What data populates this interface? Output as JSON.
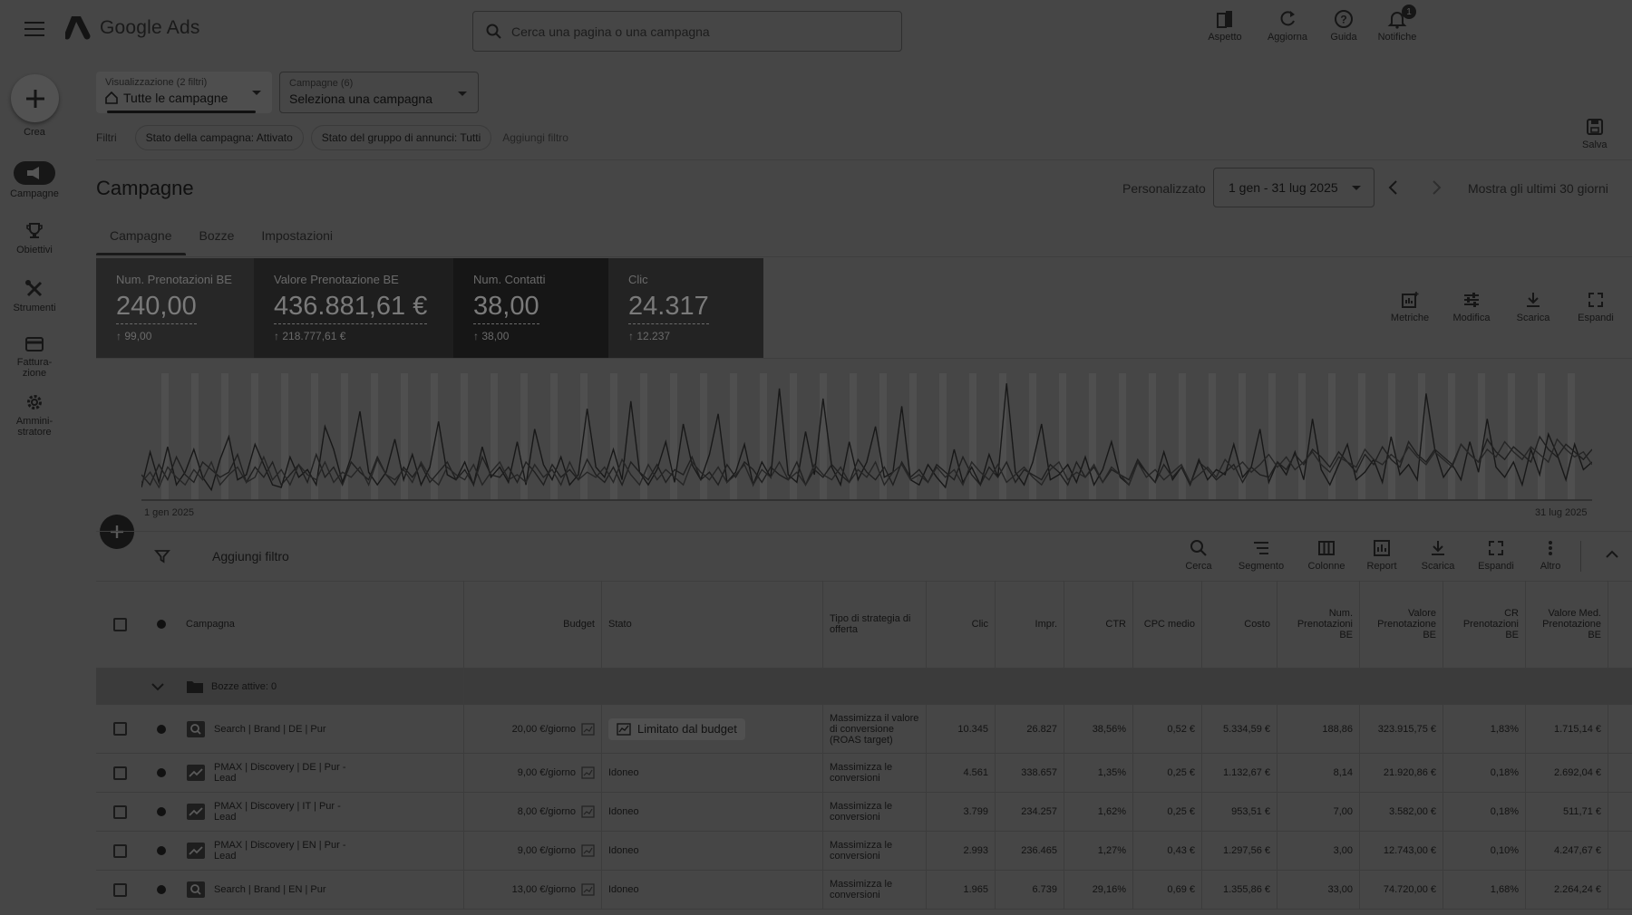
{
  "app": {
    "name": "Google Ads"
  },
  "search": {
    "placeholder": "Cerca una pagina o una campagna"
  },
  "top_actions": [
    {
      "label": "Aspetto",
      "icon": "appearance-icon"
    },
    {
      "label": "Aggiorna",
      "icon": "refresh-icon"
    },
    {
      "label": "Guida",
      "icon": "help-icon"
    },
    {
      "label": "Notifiche",
      "icon": "bell-icon",
      "badge": "1"
    }
  ],
  "rail": {
    "create_label": "Crea",
    "items": [
      {
        "label": "Campagne",
        "icon": "campaigns-icon",
        "active": true
      },
      {
        "label": "Obiettivi",
        "icon": "trophy-icon"
      },
      {
        "label": "Strumenti",
        "icon": "tools-icon"
      },
      {
        "label": "Fattura-\nzione",
        "icon": "billing-icon"
      },
      {
        "label": "Ammini-\nstratore",
        "icon": "gear-icon"
      }
    ]
  },
  "view_selector": {
    "caption": "Visualizzazione (2 filtri)",
    "value": "Tutte le campagne"
  },
  "campaign_selector": {
    "caption": "Campagne (6)",
    "value": "Seleziona una campagna"
  },
  "filters": {
    "label": "Filtri",
    "chips": [
      "Stato della campagna: Attivato",
      "Stato del gruppo di annunci: Tutti"
    ],
    "add_label": "Aggiungi filtro"
  },
  "save_label": "Salva",
  "page_title": "Campagne",
  "date": {
    "label": "Personalizzato",
    "range": "1 gen - 31 lug 2025",
    "last_30": "Mostra gli ultimi 30 giorni"
  },
  "tabs": [
    "Campagne",
    "Bozze",
    "Impostazioni"
  ],
  "scorecards": [
    {
      "name": "Num. Prenotazioni BE",
      "value": "240,00",
      "delta": "99,00"
    },
    {
      "name": "Valore Prenotazione BE",
      "value": "436.881,61 €",
      "delta": "218.777,61 €"
    },
    {
      "name": "Num. Contatti",
      "value": "38,00",
      "delta": "38,00"
    },
    {
      "name": "Clic",
      "value": "24.317",
      "delta": "12.237"
    }
  ],
  "chart_tools": [
    "Metriche",
    "Modifica",
    "Scarica",
    "Espandi"
  ],
  "chart_data": {
    "type": "line",
    "x_start_label": "1 gen 2025",
    "x_end_label": "31 lug 2025",
    "grid": "vertical bands",
    "series": [
      {
        "values": [
          10,
          38,
          14,
          42,
          12,
          22,
          40,
          18,
          8,
          32,
          50,
          16,
          20,
          44,
          28,
          12,
          10,
          34,
          18,
          24,
          12,
          58,
          40,
          14,
          34,
          70,
          22,
          12,
          22,
          48,
          16,
          36,
          12,
          26,
          62,
          20,
          16,
          30,
          12,
          42,
          18,
          26,
          14,
          46,
          12,
          56,
          28,
          16,
          34,
          12,
          20,
          72,
          26,
          18,
          40,
          16,
          78,
          22,
          12,
          24,
          46,
          14,
          60,
          28,
          16,
          36,
          68,
          14,
          22,
          44,
          12,
          30,
          18,
          88,
          20,
          14,
          54,
          20,
          80,
          26,
          12,
          46,
          16,
          30,
          58,
          18,
          22,
          74,
          16,
          12,
          28,
          18,
          10,
          40,
          14,
          26,
          12,
          36,
          18,
          92,
          22,
          12,
          30,
          60,
          16,
          20,
          28,
          14,
          34,
          12,
          24,
          46,
          18,
          12,
          30,
          22,
          14,
          38,
          16,
          26,
          12,
          32,
          16,
          24,
          20,
          44,
          18,
          26,
          56,
          14,
          30,
          20,
          38,
          16,
          64,
          24,
          12,
          28,
          44,
          16,
          22,
          32,
          14,
          50,
          20,
          28,
          16,
          84,
          40,
          18,
          28,
          16,
          46,
          22,
          64,
          26,
          18,
          30,
          12,
          40,
          20,
          52,
          36,
          16,
          44,
          24,
          30
        ]
      },
      {
        "values": [
          20,
          12,
          28,
          16,
          34,
          20,
          14,
          30,
          24,
          18,
          22,
          36,
          14,
          26,
          18,
          30,
          12,
          20,
          28,
          14,
          36,
          18,
          26,
          12,
          30,
          22,
          16,
          34,
          20,
          12,
          26,
          18,
          28,
          14,
          22,
          30,
          16,
          24,
          12,
          34,
          20,
          18,
          26,
          14,
          30,
          22,
          12,
          28,
          18,
          24,
          16,
          32,
          20,
          14,
          26,
          12,
          30,
          22,
          16,
          28,
          14,
          24,
          20,
          34,
          16,
          22,
          12,
          28,
          18,
          30,
          24,
          14,
          26,
          20,
          16,
          30,
          12,
          24,
          18,
          28,
          20,
          14,
          32,
          22,
          16,
          26,
          12,
          30,
          18,
          24,
          14,
          28,
          22,
          16,
          34,
          20,
          12,
          26,
          18,
          30,
          14,
          24,
          20,
          16,
          28,
          22,
          12,
          30,
          18,
          26,
          14,
          24,
          20,
          16,
          32,
          22,
          14,
          28,
          18,
          26,
          12,
          30,
          24,
          16,
          22,
          28,
          14,
          26,
          20,
          18,
          30,
          24,
          36,
          28,
          40,
          34,
          26,
          38,
          30,
          22,
          36,
          28,
          42,
          32,
          26,
          46,
          36,
          30,
          40,
          34,
          28,
          44,
          36,
          30,
          48,
          38,
          32,
          42,
          36,
          30,
          50,
          40,
          34,
          44,
          38,
          32,
          40
        ]
      },
      {
        "values": [
          14,
          22,
          10,
          26,
          18,
          12,
          24,
          16,
          30,
          12,
          20,
          26,
          14,
          18,
          34,
          16,
          24,
          12,
          28,
          20,
          16,
          30,
          14,
          22,
          18,
          26,
          12,
          32,
          20,
          16,
          24,
          14,
          30,
          18,
          12,
          26,
          20,
          16,
          28,
          12,
          22,
          30,
          16,
          20,
          14,
          28,
          18,
          24,
          12,
          30,
          16,
          22,
          18,
          26,
          14,
          32,
          20,
          12,
          28,
          16,
          24,
          18,
          12,
          30,
          22,
          16,
          26,
          14,
          20,
          28,
          12,
          24,
          18,
          30,
          16,
          22,
          12,
          28,
          20,
          16,
          26,
          14,
          24,
          18,
          30,
          12,
          22,
          28,
          16,
          20,
          14,
          26,
          18,
          24,
          12,
          30,
          22,
          16,
          28,
          14,
          20,
          26,
          18,
          12,
          24,
          30,
          16,
          22,
          18,
          28,
          14,
          26,
          20,
          12,
          30,
          18,
          24,
          16,
          22,
          28,
          14,
          20,
          26,
          18,
          32,
          24,
          30,
          22,
          28,
          36,
          26,
          34,
          24,
          30,
          38,
          28,
          22,
          34,
          30,
          26,
          40,
          32,
          28,
          36,
          30,
          42,
          34,
          28,
          38,
          32,
          26,
          44,
          36,
          30,
          40,
          34,
          46,
          38,
          32,
          42,
          36,
          30,
          48,
          40,
          34,
          38,
          28
        ]
      }
    ],
    "ylim": [
      0,
      100
    ]
  },
  "table_toolbar": {
    "add_filter": "Aggiungi filtro",
    "actions": [
      {
        "label": "Cerca",
        "icon": "search-icon"
      },
      {
        "label": "Segmento",
        "icon": "segment-icon"
      },
      {
        "label": "Colonne",
        "icon": "columns-icon"
      },
      {
        "label": "Report",
        "icon": "report-icon"
      },
      {
        "label": "Scarica",
        "icon": "download-icon"
      },
      {
        "label": "Espandi",
        "icon": "expand-icon"
      },
      {
        "label": "Altro",
        "icon": "more-vert-icon"
      }
    ]
  },
  "table": {
    "headers": [
      "Campagna",
      "Budget",
      "Stato",
      "Tipo di strategia di offerta",
      "Clic",
      "Impr.",
      "CTR",
      "CPC medio",
      "Costo",
      "Num. Prenotazioni BE",
      "Valore Prenotazione BE",
      "CR Prenotazioni BE",
      "Valore Med. Prenotazione BE"
    ],
    "group_label": "Bozze attive: 0",
    "rows": [
      {
        "name": "Search | Brand | DE | Pur",
        "type": "search",
        "budget": "20,00 €/giorno",
        "status": "Limitato dal budget",
        "status_chip": true,
        "strategy": "Massimizza il valore di conversione (ROAS target)",
        "clic": "10.345",
        "impr": "26.827",
        "ctr": "38,56%",
        "cpc": "0,52 €",
        "costo": "5.334,59 €",
        "pren": "188,86",
        "valore": "323.915,75 €",
        "cr": "1,83%",
        "valmed": "1.715,14 €"
      },
      {
        "name": "PMAX | Discovery | DE | Pur - Lead",
        "type": "pmax",
        "budget": "9,00 €/giorno",
        "status": "Idoneo",
        "strategy": "Massimizza le conversioni",
        "clic": "4.561",
        "impr": "338.657",
        "ctr": "1,35%",
        "cpc": "0,25 €",
        "costo": "1.132,67 €",
        "pren": "8,14",
        "valore": "21.920,86 €",
        "cr": "0,18%",
        "valmed": "2.692,04 €"
      },
      {
        "name": "PMAX | Discovery | IT | Pur - Lead",
        "type": "pmax",
        "budget": "8,00 €/giorno",
        "status": "Idoneo",
        "strategy": "Massimizza le conversioni",
        "clic": "3.799",
        "impr": "234.257",
        "ctr": "1,62%",
        "cpc": "0,25 €",
        "costo": "953,51 €",
        "pren": "7,00",
        "valore": "3.582,00 €",
        "cr": "0,18%",
        "valmed": "511,71 €"
      },
      {
        "name": "PMAX | Discovery | EN | Pur - Lead",
        "type": "pmax",
        "budget": "9,00 €/giorno",
        "status": "Idoneo",
        "strategy": "Massimizza le conversioni",
        "clic": "2.993",
        "impr": "236.465",
        "ctr": "1,27%",
        "cpc": "0,43 €",
        "costo": "1.297,56 €",
        "pren": "3,00",
        "valore": "12.743,00 €",
        "cr": "0,10%",
        "valmed": "4.247,67 €"
      },
      {
        "name": "Search | Brand | EN | Pur",
        "type": "search",
        "budget": "13,00 €/giorno",
        "status": "Idoneo",
        "strategy": "Massimizza le conversioni",
        "clic": "1.965",
        "impr": "6.739",
        "ctr": "29,16%",
        "cpc": "0,69 €",
        "costo": "1.355,86 €",
        "pren": "33,00",
        "valore": "74.720,00 €",
        "cr": "1,68%",
        "valmed": "2.264,24 €"
      }
    ]
  },
  "colors": {
    "overlay_bg": "#464646",
    "card_dark": "#1f1f1f"
  }
}
